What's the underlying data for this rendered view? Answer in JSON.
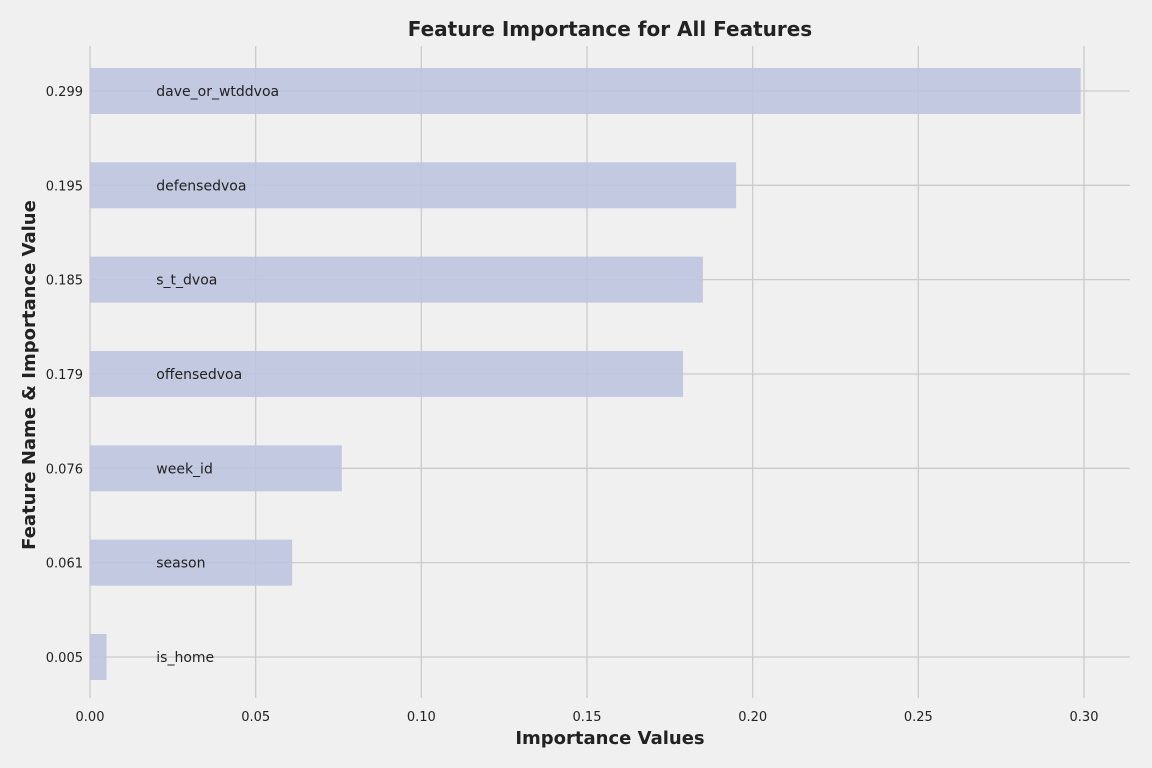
{
  "chart_data": {
    "type": "bar",
    "orientation": "horizontal",
    "title": "Feature Importance for All Features",
    "xlabel": "Importance Values",
    "ylabel": "Feature Name & Importance Value",
    "xlim": [
      0,
      0.313
    ],
    "xticks": [
      0.0,
      0.05,
      0.1,
      0.15,
      0.2,
      0.25,
      0.3
    ],
    "xtick_labels": [
      "0.00",
      "0.05",
      "0.10",
      "0.15",
      "0.20",
      "0.25",
      "0.30"
    ],
    "grid": true,
    "bar_color": "#bcc4de",
    "background_color": "#f0f0f0",
    "grid_color": "#cbcbcb",
    "label_x_value": 0.02,
    "bars": [
      {
        "feature": "dave_or_wtddvoa",
        "value": 0.299,
        "value_label": "0.299"
      },
      {
        "feature": "defensedvoa",
        "value": 0.195,
        "value_label": "0.195"
      },
      {
        "feature": "s_t_dvoa",
        "value": 0.185,
        "value_label": "0.185"
      },
      {
        "feature": "offensedvoa",
        "value": 0.179,
        "value_label": "0.179"
      },
      {
        "feature": "week_id",
        "value": 0.076,
        "value_label": "0.076"
      },
      {
        "feature": "season",
        "value": 0.061,
        "value_label": "0.061"
      },
      {
        "feature": "is_home",
        "value": 0.005,
        "value_label": "0.005"
      }
    ]
  }
}
